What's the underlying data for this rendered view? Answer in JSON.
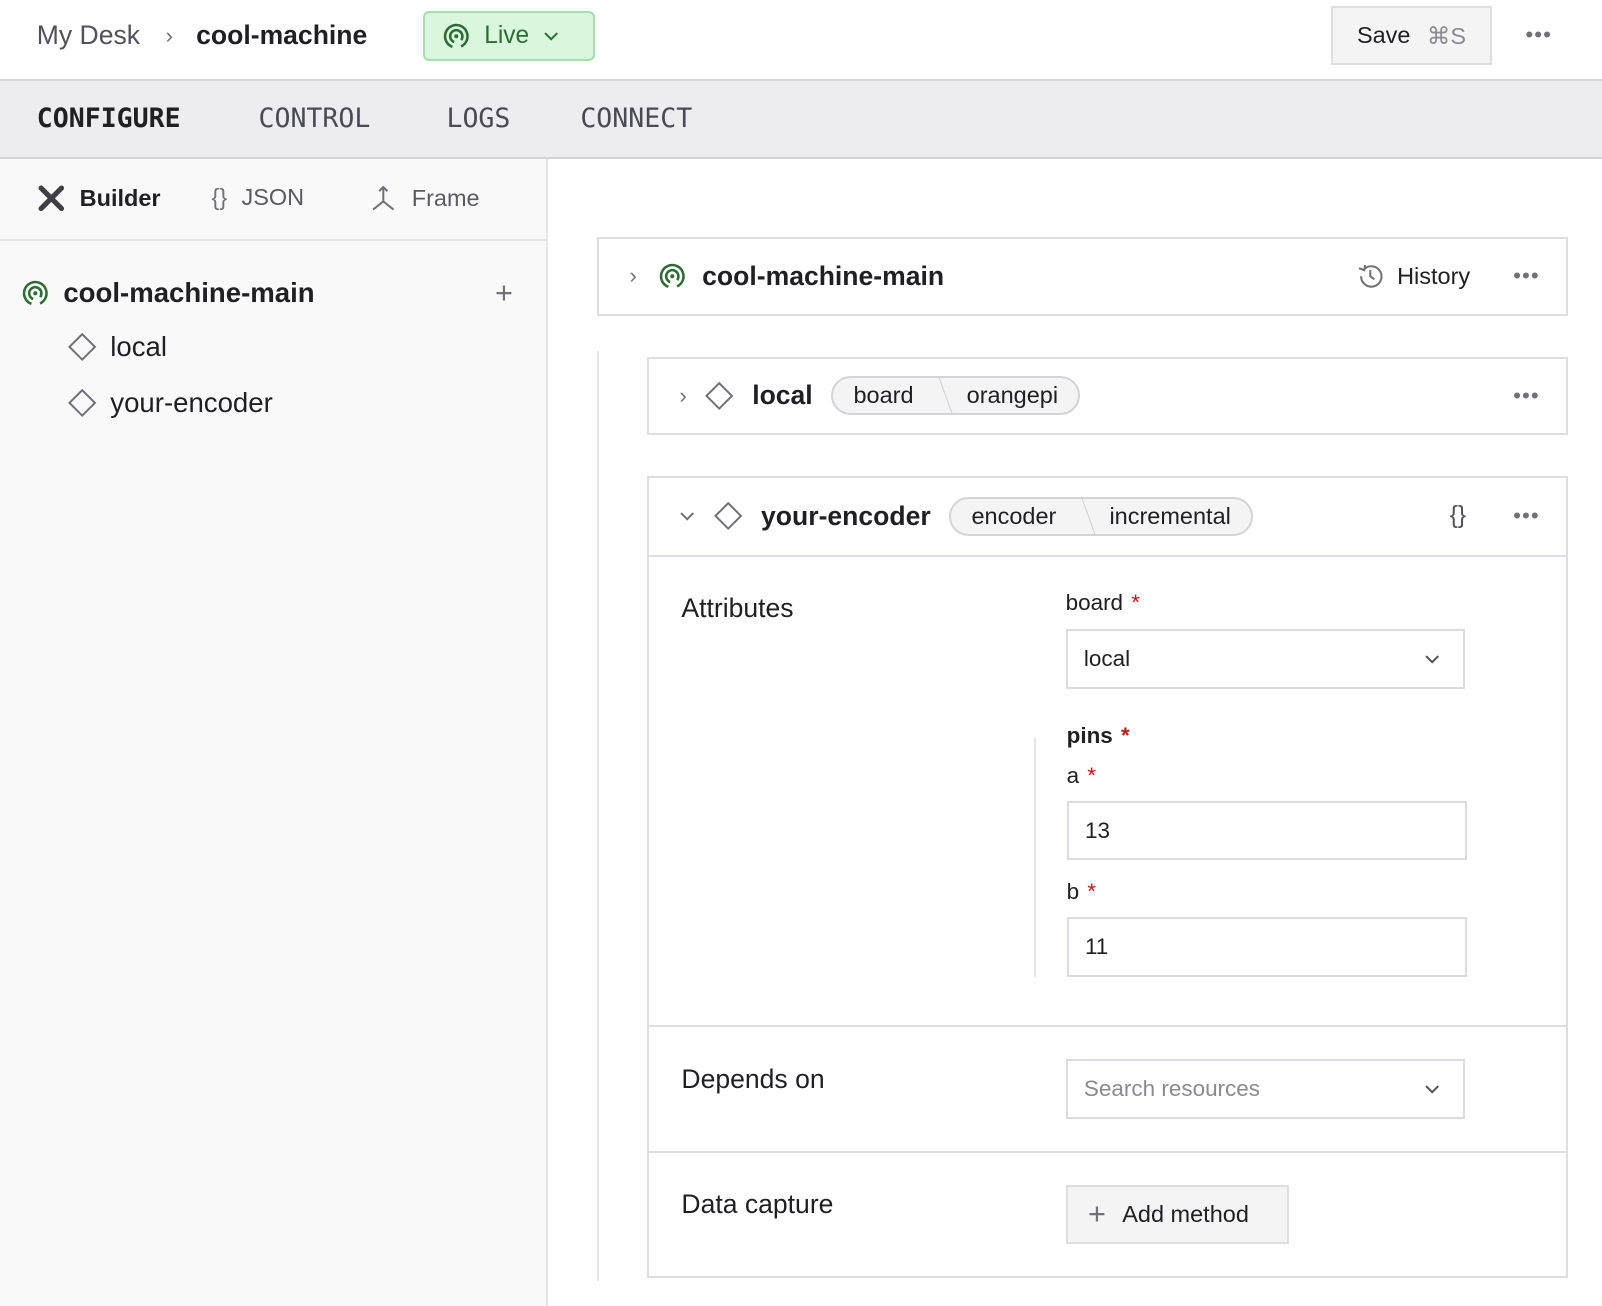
{
  "breadcrumb": {
    "parent": "My Desk",
    "current": "cool-machine"
  },
  "status": {
    "label": "Live",
    "color": "#2f6b35",
    "background": "#d9f7dc"
  },
  "save": {
    "label": "Save",
    "shortcut": "⌘S"
  },
  "tabs": [
    {
      "label": "CONFIGURE",
      "active": true
    },
    {
      "label": "CONTROL"
    },
    {
      "label": "LOGS"
    },
    {
      "label": "CONNECT"
    }
  ],
  "subtabs": [
    {
      "label": "Builder",
      "icon": "tools-icon",
      "active": true
    },
    {
      "label": "JSON",
      "icon": "braces-icon"
    },
    {
      "label": "Frame",
      "icon": "axes-icon"
    }
  ],
  "tree": {
    "root": "cool-machine-main",
    "children": [
      "local",
      "your-encoder"
    ]
  },
  "main": {
    "part": {
      "name": "cool-machine-main",
      "history": "History"
    },
    "local": {
      "name": "local",
      "api": [
        "board",
        "orangepi"
      ]
    },
    "encoder": {
      "name": "your-encoder",
      "api": [
        "encoder",
        "incremental"
      ],
      "attributes_title": "Attributes",
      "board_label": "board",
      "board_value": "local",
      "pins_label": "pins",
      "a_label": "a",
      "a_value": "13",
      "b_label": "b",
      "b_value": "11",
      "depends_title": "Depends on",
      "depends_placeholder": "Search resources",
      "capture_title": "Data capture",
      "add_method": "Add method"
    },
    "required_mark": "*"
  }
}
